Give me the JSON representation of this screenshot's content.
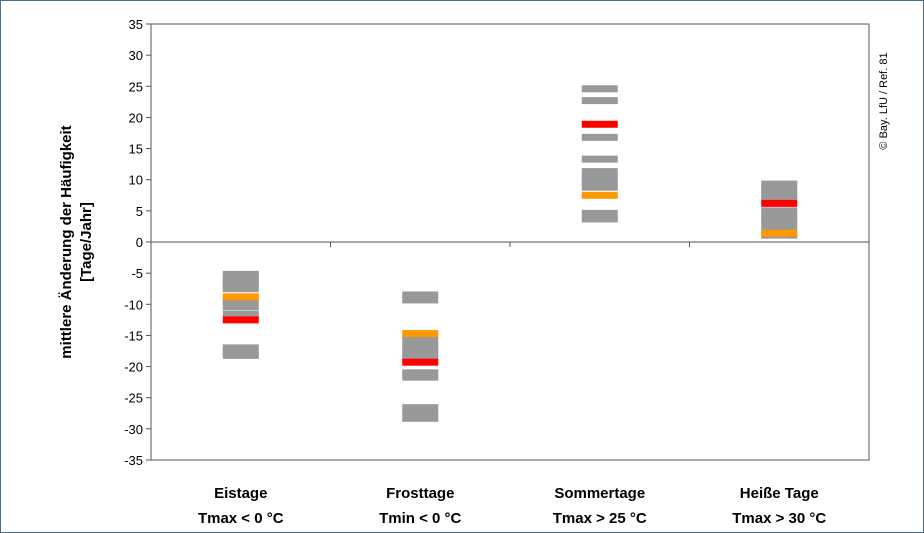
{
  "chart_data": {
    "type": "scatter",
    "ylabel_line1": "mittlere Änderung der Häufigkeit",
    "ylabel_line2": "[Tage/Jahr]",
    "ylim": [
      -35,
      35
    ],
    "yticks": [
      35,
      30,
      25,
      20,
      15,
      10,
      5,
      0,
      -5,
      -10,
      -15,
      -20,
      -25,
      -30,
      -35
    ],
    "grid": false,
    "credit": "© Bay. LfU / Ref. 81",
    "categories": [
      {
        "line1": "Eistage",
        "line2": "Tmax < 0 °C"
      },
      {
        "line1": "Frosttage",
        "line2": "Tmin < 0 °C"
      },
      {
        "line1": "Sommertage",
        "line2": "Tmax > 25 °C"
      },
      {
        "line1": "Heiße Tage",
        "line2": "Tmax > 30 °C"
      }
    ],
    "colors": {
      "gray": "#999999",
      "orange": "#ff9900",
      "red": "#ff0000"
    },
    "series": [
      {
        "color": "gray",
        "values": [
          [
            -5.2,
            -5.8,
            -6.3,
            -6.9,
            -7.5,
            -9.5,
            -10.4,
            -11.6,
            -17.0,
            -17.6,
            -18.2
          ],
          [
            -8.5,
            -9.3,
            -15.7,
            -16.5,
            -17.2,
            -17.9,
            -18.6,
            -21.0,
            -21.7,
            -26.6,
            -27.4,
            -28.3
          ],
          [
            3.7,
            4.6,
            24.6,
            22.7,
            16.8,
            13.3,
            11.3,
            10.4,
            9.6,
            8.8
          ],
          [
            9.3,
            8.5,
            7.6,
            6.8,
            5.0,
            4.3,
            3.4,
            2.7,
            1.8,
            1.1
          ]
        ]
      },
      {
        "color": "orange",
        "values": [
          -8.8,
          -14.7,
          7.5,
          1.4
        ]
      },
      {
        "color": "red",
        "values": [
          -12.5,
          -19.3,
          18.9,
          6.2
        ]
      }
    ]
  }
}
